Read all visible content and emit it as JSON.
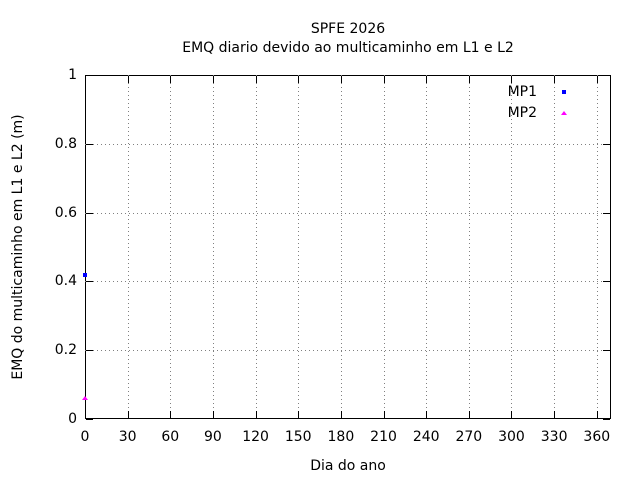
{
  "chart_data": {
    "type": "scatter",
    "title": "SPFE 2026",
    "subtitle": "EMQ diario devido ao multicaminho em L1 e L2",
    "xlabel": "Dia do ano",
    "ylabel": "EMQ do multicaminho em L1 e L2 (m)",
    "xlim": [
      0,
      370
    ],
    "ylim": [
      0,
      1
    ],
    "x_ticks": [
      0,
      30,
      60,
      90,
      120,
      150,
      180,
      210,
      240,
      270,
      300,
      330,
      360
    ],
    "y_ticks": [
      0,
      0.2,
      0.4,
      0.6,
      0.8,
      1
    ],
    "grid": true,
    "grid_color": "#808080",
    "legend_position": "top-right",
    "series": [
      {
        "name": "MP1",
        "color": "#0000ff",
        "marker": "square",
        "points": [
          {
            "x": 0,
            "y": 0.42
          }
        ]
      },
      {
        "name": "MP2",
        "color": "#ff00ff",
        "marker": "triangle",
        "points": [
          {
            "x": 0,
            "y": 0.06
          }
        ]
      }
    ]
  }
}
